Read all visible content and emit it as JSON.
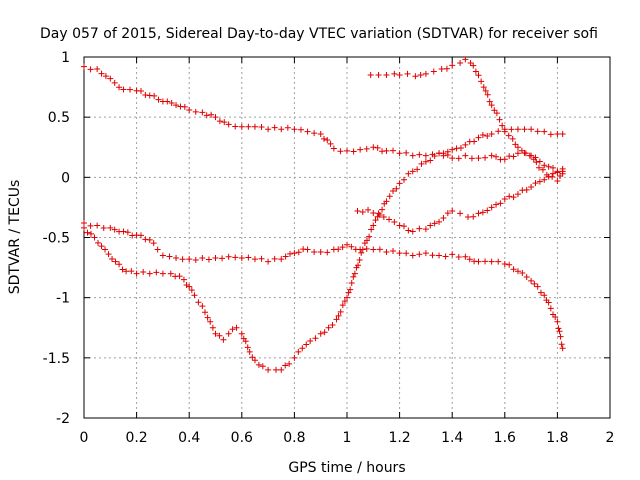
{
  "chart_data": {
    "type": "scatter",
    "title": "Day 057 of 2015, Sidereal Day-to-day VTEC variation (SDTVAR) for receiver sofi",
    "xlabel": "GPS time / hours",
    "ylabel": "SDTVAR / TECUs",
    "xlim": [
      0,
      2
    ],
    "ylim": [
      -2,
      1
    ],
    "xticks": [
      "0",
      "0.2",
      "0.4",
      "0.6",
      "0.8",
      "1",
      "1.2",
      "1.4",
      "1.6",
      "1.8",
      "2"
    ],
    "yticks": [
      "1",
      "0.5",
      "0",
      "-0.5",
      "-1",
      "-1.5",
      "-2"
    ],
    "grid": true,
    "marker": "+",
    "color": "#e00000",
    "series": [
      {
        "x": [
          0,
          0.05,
          0.1,
          0.15,
          0.2,
          0.25,
          0.3,
          0.35,
          0.4,
          0.45,
          0.5,
          0.55,
          0.6,
          0.65,
          0.7,
          0.75,
          0.8,
          0.85,
          0.9,
          0.95,
          1.0,
          1.05,
          1.1,
          1.15,
          1.2,
          1.25,
          1.3,
          1.35,
          1.4,
          1.45,
          1.5,
          1.55,
          1.6,
          1.65,
          1.7,
          1.75,
          1.8,
          1.82
        ],
        "y": [
          0.92,
          0.9,
          0.82,
          0.73,
          0.72,
          0.68,
          0.63,
          0.6,
          0.56,
          0.54,
          0.5,
          0.44,
          0.42,
          0.42,
          0.4,
          0.4,
          0.4,
          0.38,
          0.36,
          0.24,
          0.22,
          0.23,
          0.25,
          0.22,
          0.2,
          0.18,
          0.18,
          0.2,
          0.16,
          0.18,
          0.16,
          0.18,
          0.15,
          0.2,
          0.18,
          0.1,
          0.05,
          0.03
        ]
      },
      {
        "x": [
          1.09,
          1.12,
          1.15,
          1.18,
          1.2,
          1.23,
          1.26,
          1.28,
          1.3,
          1.33,
          1.36,
          1.4,
          1.43,
          1.45,
          1.47,
          1.49,
          1.52,
          1.55,
          1.58,
          1.6,
          1.63,
          1.65,
          1.68,
          1.71,
          1.73,
          1.76,
          1.8,
          1.82
        ],
        "y": [
          0.85,
          0.85,
          0.85,
          0.86,
          0.85,
          0.86,
          0.84,
          0.85,
          0.86,
          0.88,
          0.9,
          0.93,
          0.95,
          0.98,
          0.95,
          0.88,
          0.75,
          0.6,
          0.48,
          0.4,
          0.32,
          0.25,
          0.2,
          0.15,
          0.08,
          0.02,
          -0.03,
          0.05
        ]
      },
      {
        "x": [
          0,
          0.05,
          0.1,
          0.15,
          0.2,
          0.25,
          0.28,
          0.3,
          0.35,
          0.4,
          0.45,
          0.5,
          0.55,
          0.6,
          0.65,
          0.7,
          0.75,
          0.8,
          0.85,
          0.9,
          0.95,
          1.0,
          1.05,
          1.1,
          1.15,
          1.2,
          1.25,
          1.3,
          1.35,
          1.4,
          1.45,
          1.5,
          1.55,
          1.6,
          1.65,
          1.7,
          1.75,
          1.8,
          1.82
        ],
        "y": [
          -0.38,
          -0.4,
          -0.42,
          -0.45,
          -0.48,
          -0.52,
          -0.6,
          -0.65,
          -0.67,
          -0.68,
          -0.67,
          -0.67,
          -0.66,
          -0.67,
          -0.68,
          -0.7,
          -0.68,
          -0.63,
          -0.6,
          -0.62,
          -0.6,
          -0.56,
          -0.6,
          -0.6,
          -0.62,
          -0.63,
          -0.65,
          -0.63,
          -0.65,
          -0.64,
          -0.66,
          -0.7,
          -0.7,
          -0.72,
          -0.78,
          -0.86,
          -0.98,
          -1.2,
          -1.42
        ]
      },
      {
        "x": [
          0,
          0.04,
          0.08,
          0.12,
          0.16,
          0.2,
          0.25,
          0.3,
          0.33,
          0.38,
          0.42,
          0.45,
          0.48,
          0.5,
          0.53,
          0.55,
          0.58,
          0.6,
          0.63,
          0.65,
          0.68,
          0.7,
          0.73,
          0.75,
          0.78,
          0.8,
          0.83,
          0.86,
          0.9,
          0.93,
          0.96,
          1.0,
          1.03,
          1.06,
          1.1,
          1.15,
          1.2,
          1.25,
          1.3,
          1.35,
          1.4,
          1.45,
          1.5,
          1.55,
          1.6,
          1.65,
          1.7,
          1.75,
          1.8,
          1.82
        ],
        "y": [
          -0.42,
          -0.5,
          -0.6,
          -0.7,
          -0.78,
          -0.8,
          -0.8,
          -0.8,
          -0.8,
          -0.85,
          -0.98,
          -1.07,
          -1.2,
          -1.3,
          -1.35,
          -1.3,
          -1.25,
          -1.3,
          -1.45,
          -1.52,
          -1.57,
          -1.6,
          -1.6,
          -1.6,
          -1.55,
          -1.5,
          -1.42,
          -1.36,
          -1.3,
          -1.25,
          -1.18,
          -1.0,
          -0.8,
          -0.6,
          -0.4,
          -0.2,
          -0.05,
          0.05,
          0.13,
          0.2,
          0.23,
          0.27,
          0.33,
          0.36,
          0.38,
          0.4,
          0.4,
          0.38,
          0.36,
          0.36
        ]
      },
      {
        "x": [
          1.04,
          1.08,
          1.12,
          1.16,
          1.2,
          1.25,
          1.3,
          1.35,
          1.4,
          1.43,
          1.46,
          1.5,
          1.55,
          1.6,
          1.65,
          1.7,
          1.75,
          1.8,
          1.82
        ],
        "y": [
          -0.28,
          -0.27,
          -0.3,
          -0.35,
          -0.4,
          -0.45,
          -0.43,
          -0.37,
          -0.28,
          -0.3,
          -0.33,
          -0.3,
          -0.25,
          -0.18,
          -0.14,
          -0.08,
          -0.02,
          0.04,
          0.07
        ]
      }
    ]
  }
}
